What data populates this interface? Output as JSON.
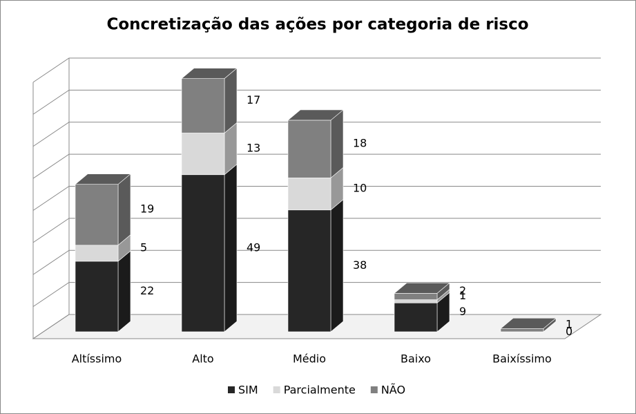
{
  "chart_data": {
    "type": "bar3d-stacked",
    "title": "Concretização das ações por categoria de risco",
    "categories": [
      "Altíssimo",
      "Alto",
      "Médio",
      "Baixo",
      "Baixíssimo"
    ],
    "series": [
      {
        "name": "SIM",
        "color": "#262626",
        "values": [
          22,
          49,
          38,
          9,
          0
        ]
      },
      {
        "name": "Parcialmente",
        "color": "#d9d9d9",
        "values": [
          5,
          13,
          10,
          1,
          null
        ]
      },
      {
        "name": "NÃO",
        "color": "#808080",
        "values": [
          19,
          17,
          18,
          2,
          1
        ]
      }
    ],
    "ylim": [
      0,
      80
    ],
    "yticks": [
      0,
      10,
      20,
      30,
      40,
      50,
      60,
      70,
      80
    ],
    "grid": true,
    "legend": "bottom"
  }
}
